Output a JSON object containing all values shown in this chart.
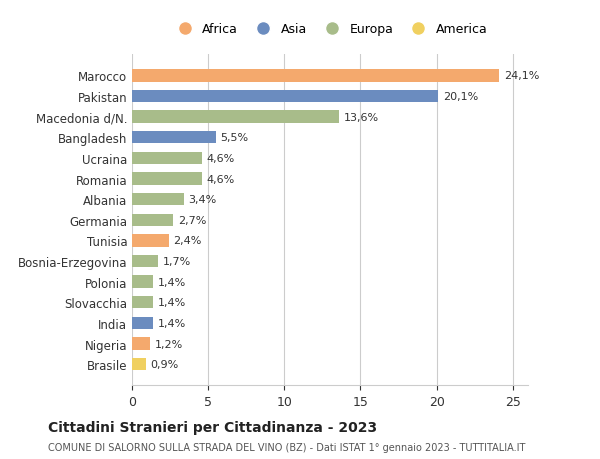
{
  "categories": [
    "Marocco",
    "Pakistan",
    "Macedonia d/N.",
    "Bangladesh",
    "Ucraina",
    "Romania",
    "Albania",
    "Germania",
    "Tunisia",
    "Bosnia-Erzegovina",
    "Polonia",
    "Slovacchia",
    "India",
    "Nigeria",
    "Brasile"
  ],
  "values": [
    24.1,
    20.1,
    13.6,
    5.5,
    4.6,
    4.6,
    3.4,
    2.7,
    2.4,
    1.7,
    1.4,
    1.4,
    1.4,
    1.2,
    0.9
  ],
  "labels": [
    "24,1%",
    "20,1%",
    "13,6%",
    "5,5%",
    "4,6%",
    "4,6%",
    "3,4%",
    "2,7%",
    "2,4%",
    "1,7%",
    "1,4%",
    "1,4%",
    "1,4%",
    "1,2%",
    "0,9%"
  ],
  "colors": [
    "#f4a96d",
    "#6b8cbf",
    "#a8bc8a",
    "#6b8cbf",
    "#a8bc8a",
    "#a8bc8a",
    "#a8bc8a",
    "#a8bc8a",
    "#f4a96d",
    "#a8bc8a",
    "#a8bc8a",
    "#a8bc8a",
    "#6b8cbf",
    "#f4a96d",
    "#f0d060"
  ],
  "continents": [
    "Africa",
    "Asia",
    "Europa",
    "America"
  ],
  "legend_colors": [
    "#f4a96d",
    "#6b8cbf",
    "#a8bc8a",
    "#f0d060"
  ],
  "title": "Cittadini Stranieri per Cittadinanza - 2023",
  "subtitle": "COMUNE DI SALORNO SULLA STRADA DEL VINO (BZ) - Dati ISTAT 1° gennaio 2023 - TUTTITALIA.IT",
  "xlim": [
    0,
    26
  ],
  "xticks": [
    0,
    5,
    10,
    15,
    20,
    25
  ],
  "bg_color": "#ffffff",
  "grid_color": "#cccccc"
}
